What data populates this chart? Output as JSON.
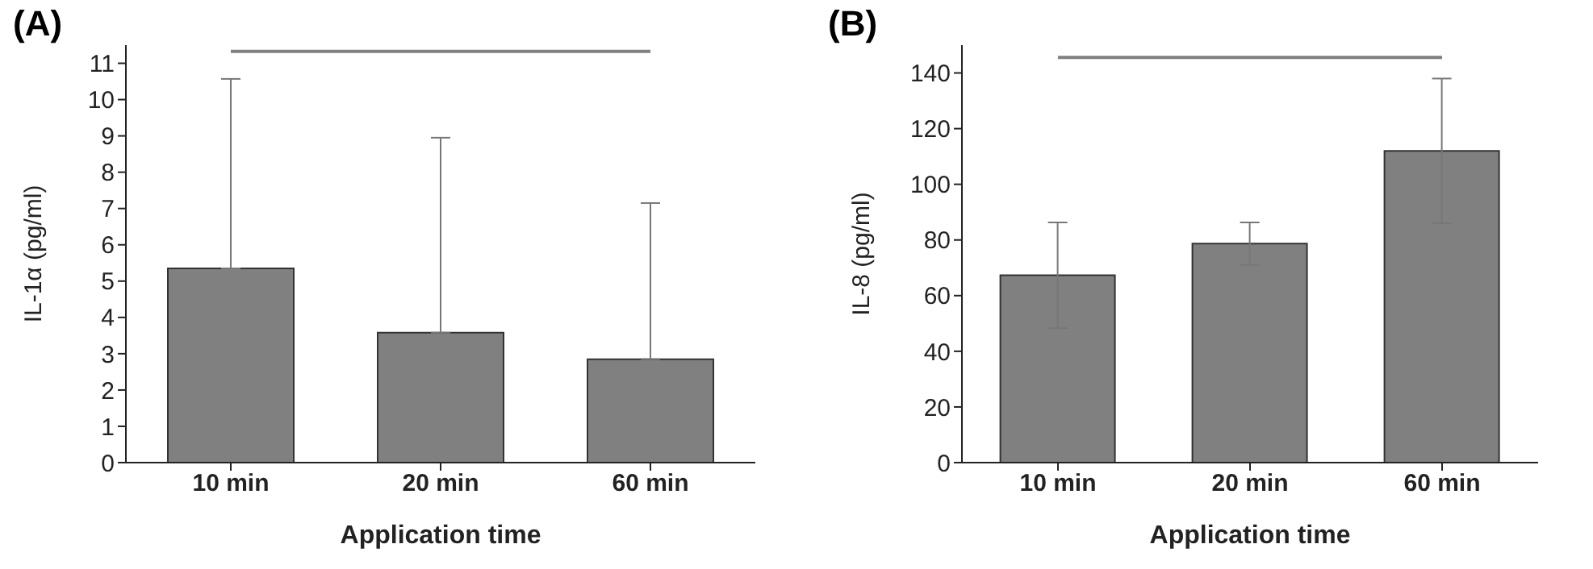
{
  "chart_data": [
    {
      "type": "bar",
      "title": "(A)",
      "xlabel": "Application time",
      "ylabel": "IL-1α  (pg/ml)",
      "categories": [
        "10 min",
        "20 min",
        "60 min"
      ],
      "values": [
        5.35,
        3.58,
        2.85
      ],
      "errors": [
        [
          5.35,
          10.57
        ],
        [
          3.58,
          8.95
        ],
        [
          2.85,
          7.15
        ]
      ],
      "color": "#808080",
      "ylim": [
        0,
        11.5
      ],
      "yticks": [
        0,
        1,
        2,
        3,
        4,
        5,
        6,
        7,
        8,
        9,
        10,
        11
      ],
      "ref_lines": [
        {
          "axis": "y",
          "value": 11.33,
          "color": "#808080"
        }
      ],
      "grid": false,
      "legend": false
    },
    {
      "type": "bar",
      "title": "(B)",
      "xlabel": "Application time",
      "ylabel": "IL-8 (pg/ml)",
      "categories": [
        "10 min",
        "20 min",
        "60 min"
      ],
      "values": [
        67.3,
        78.7,
        112
      ],
      "errors": [
        19,
        7.6,
        26
      ],
      "color": "#808080",
      "ylim": [
        0,
        150
      ],
      "yticks": [
        0,
        20,
        40,
        60,
        80,
        100,
        120,
        140
      ],
      "ref_lines": [
        {
          "axis": "y",
          "value": 145.6,
          "color": "#808080"
        }
      ],
      "grid": false,
      "legend": false
    }
  ]
}
